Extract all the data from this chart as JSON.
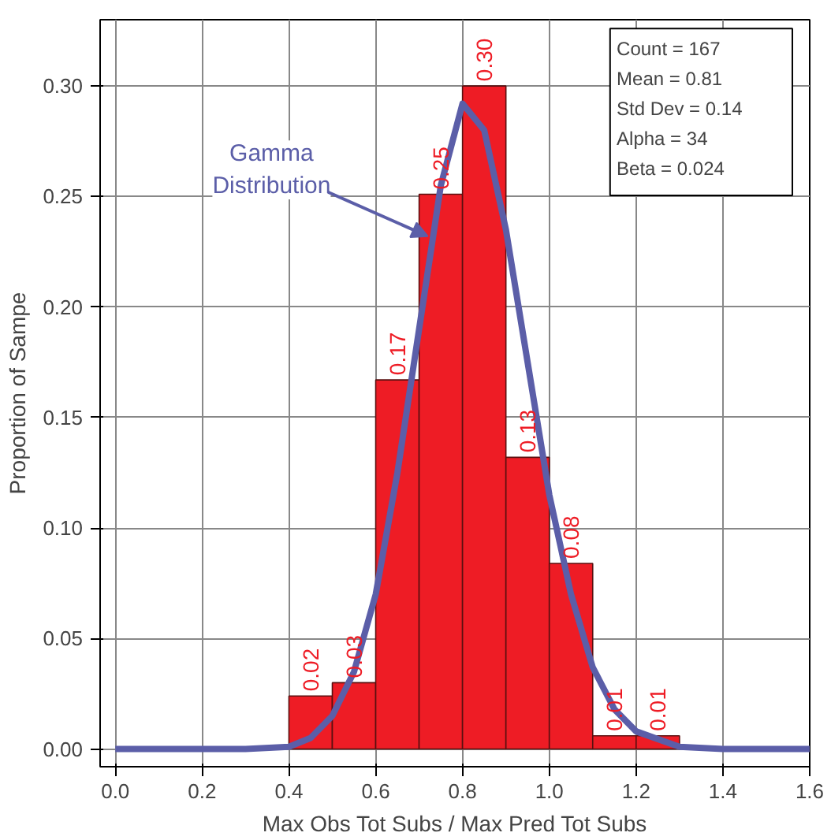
{
  "chart_data": {
    "type": "histogram",
    "xlabel": "Max Obs Tot Subs / Max Pred Tot Subs",
    "ylabel": "Proportion of Sampe",
    "bins": [
      0.4,
      0.5,
      0.6,
      0.7,
      0.8,
      0.9,
      1.0,
      1.1,
      1.2,
      1.3
    ],
    "values": [
      0.024,
      0.03,
      0.167,
      0.251,
      0.3,
      0.132,
      0.084,
      0.006,
      0.006
    ],
    "value_labels": [
      "0.02",
      "0.03",
      "0.17",
      "0.25",
      "0.30",
      "0.13",
      "0.08",
      "0.01",
      "0.01"
    ],
    "color": "#ee1c25",
    "series": [
      {
        "type": "line",
        "color": "#5b5ea8",
        "x": [
          0.0,
          0.3,
          0.4,
          0.45,
          0.5,
          0.55,
          0.6,
          0.65,
          0.7,
          0.75,
          0.8,
          0.85,
          0.9,
          0.95,
          1.0,
          1.05,
          1.1,
          1.15,
          1.2,
          1.3,
          1.4,
          1.6
        ],
        "values": [
          0,
          0,
          0.001,
          0.005,
          0.015,
          0.035,
          0.07,
          0.125,
          0.19,
          0.255,
          0.292,
          0.28,
          0.235,
          0.175,
          0.115,
          0.07,
          0.037,
          0.018,
          0.008,
          0.001,
          0,
          0
        ]
      }
    ],
    "annotations": [
      {
        "text": "Gamma\nDistribution",
        "x": 0.72,
        "y": 0.232
      },
      "Count = 167",
      "Mean = 0.81",
      "Std Dev = 0.14",
      "Alpha = 34",
      "Beta = 0.024"
    ],
    "xlim": [
      -0.035,
      1.6
    ],
    "ylim": [
      -0.008,
      0.33
    ],
    "xticks": [
      {
        "value": 0,
        "label": "0.0"
      },
      {
        "value": 0.2,
        "label": "0.2"
      },
      {
        "value": 0.4,
        "label": "0.4"
      },
      {
        "value": 0.6,
        "label": "0.6"
      },
      {
        "value": 0.8,
        "label": "0.8"
      },
      {
        "value": 1.0,
        "label": "1.0"
      },
      {
        "value": 1.2,
        "label": "1.2"
      },
      {
        "value": 1.4,
        "label": "1.4"
      },
      {
        "value": 1.6,
        "label": "1.6"
      }
    ],
    "yticks": [
      {
        "value": 0,
        "label": "0.00"
      },
      {
        "value": 0.05,
        "label": "0.05"
      },
      {
        "value": 0.1,
        "label": "0.10"
      },
      {
        "value": 0.15,
        "label": "0.15"
      },
      {
        "value": 0.2,
        "label": "0.20"
      },
      {
        "value": 0.25,
        "label": "0.25"
      },
      {
        "value": 0.3,
        "label": "0.30"
      }
    ],
    "grid": true
  }
}
